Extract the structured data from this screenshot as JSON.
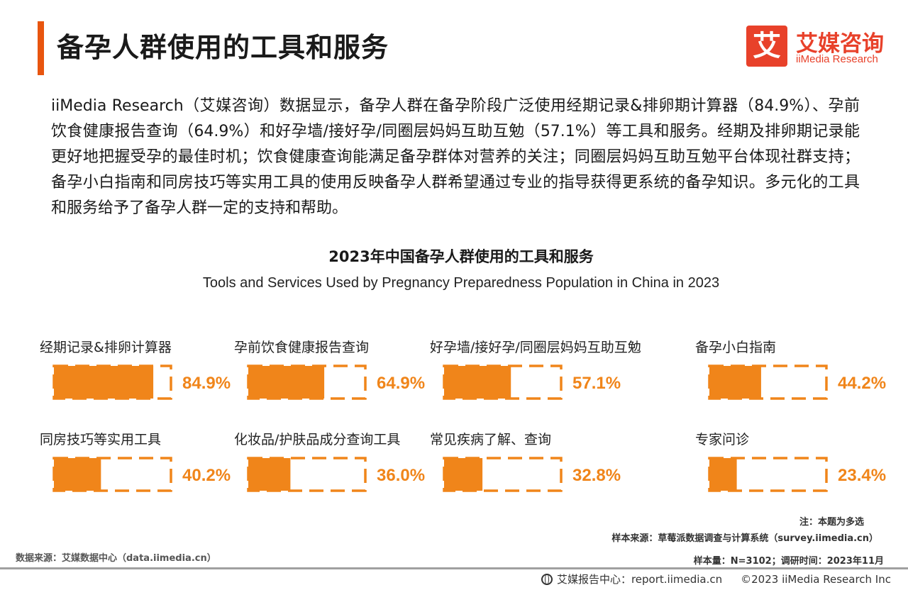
{
  "header": {
    "title": "备孕人群使用的工具和服务",
    "logo_cn": "艾媒咨询",
    "logo_en": "iiMedia Research",
    "logo_char": "艾"
  },
  "summary": "iiMedia Research（艾媒咨询）数据显示，备孕人群在备孕阶段广泛使用经期记录&排卵期计算器（84.9%）、孕前饮食健康报告查询（64.9%）和好孕墙/接好孕/同圈层妈妈互助互勉（57.1%）等工具和服务。经期及排卵期记录能更好地把握受孕的最佳时机；饮食健康查询能满足备孕群体对营养的关注；同圈层妈妈互助互勉平台体现社群支持；备孕小白指南和同房技巧等实用工具的使用反映备孕人群希望通过专业的指导获得更系统的备孕知识。多元化的工具和服务给予了备孕人群一定的支持和帮助。",
  "chart_data": {
    "type": "bar",
    "title": "2023年中国备孕人群使用的工具和服务",
    "subtitle": "Tools and Services Used by Pregnancy Preparedness Population in China in 2023",
    "categories": [
      "经期记录&排卵计算器",
      "孕前饮食健康报告查询",
      "好孕墙/接好孕/同圈层妈妈互助互勉",
      "备孕小白指南",
      "同房技巧等实用工具",
      "化妆品/护肤品成分查询工具",
      "常见疾病了解、查询",
      "专家问诊"
    ],
    "values": [
      84.9,
      64.9,
      57.1,
      44.2,
      40.2,
      36.0,
      32.8,
      23.4
    ],
    "value_labels": [
      "84.9%",
      "64.9%",
      "57.1%",
      "44.2%",
      "40.2%",
      "36.0%",
      "32.8%",
      "23.4%"
    ],
    "ylim": [
      0,
      100
    ],
    "bar_color": "#f0851a",
    "label_color": "#f0851a"
  },
  "notes": {
    "note": "注：本题为多选",
    "sample_source": "样本来源：草莓派数据调查与计算系统（survey.iimedia.cn）",
    "sample_size": "样本量：N=3102；调研时间：2023年11月",
    "data_source": "数据来源：艾媒数据中心（data.iimedia.cn）"
  },
  "footer": {
    "report_center": "艾媒报告中心：report.iimedia.cn",
    "copyright": "©2023  iiMedia Research  Inc"
  }
}
